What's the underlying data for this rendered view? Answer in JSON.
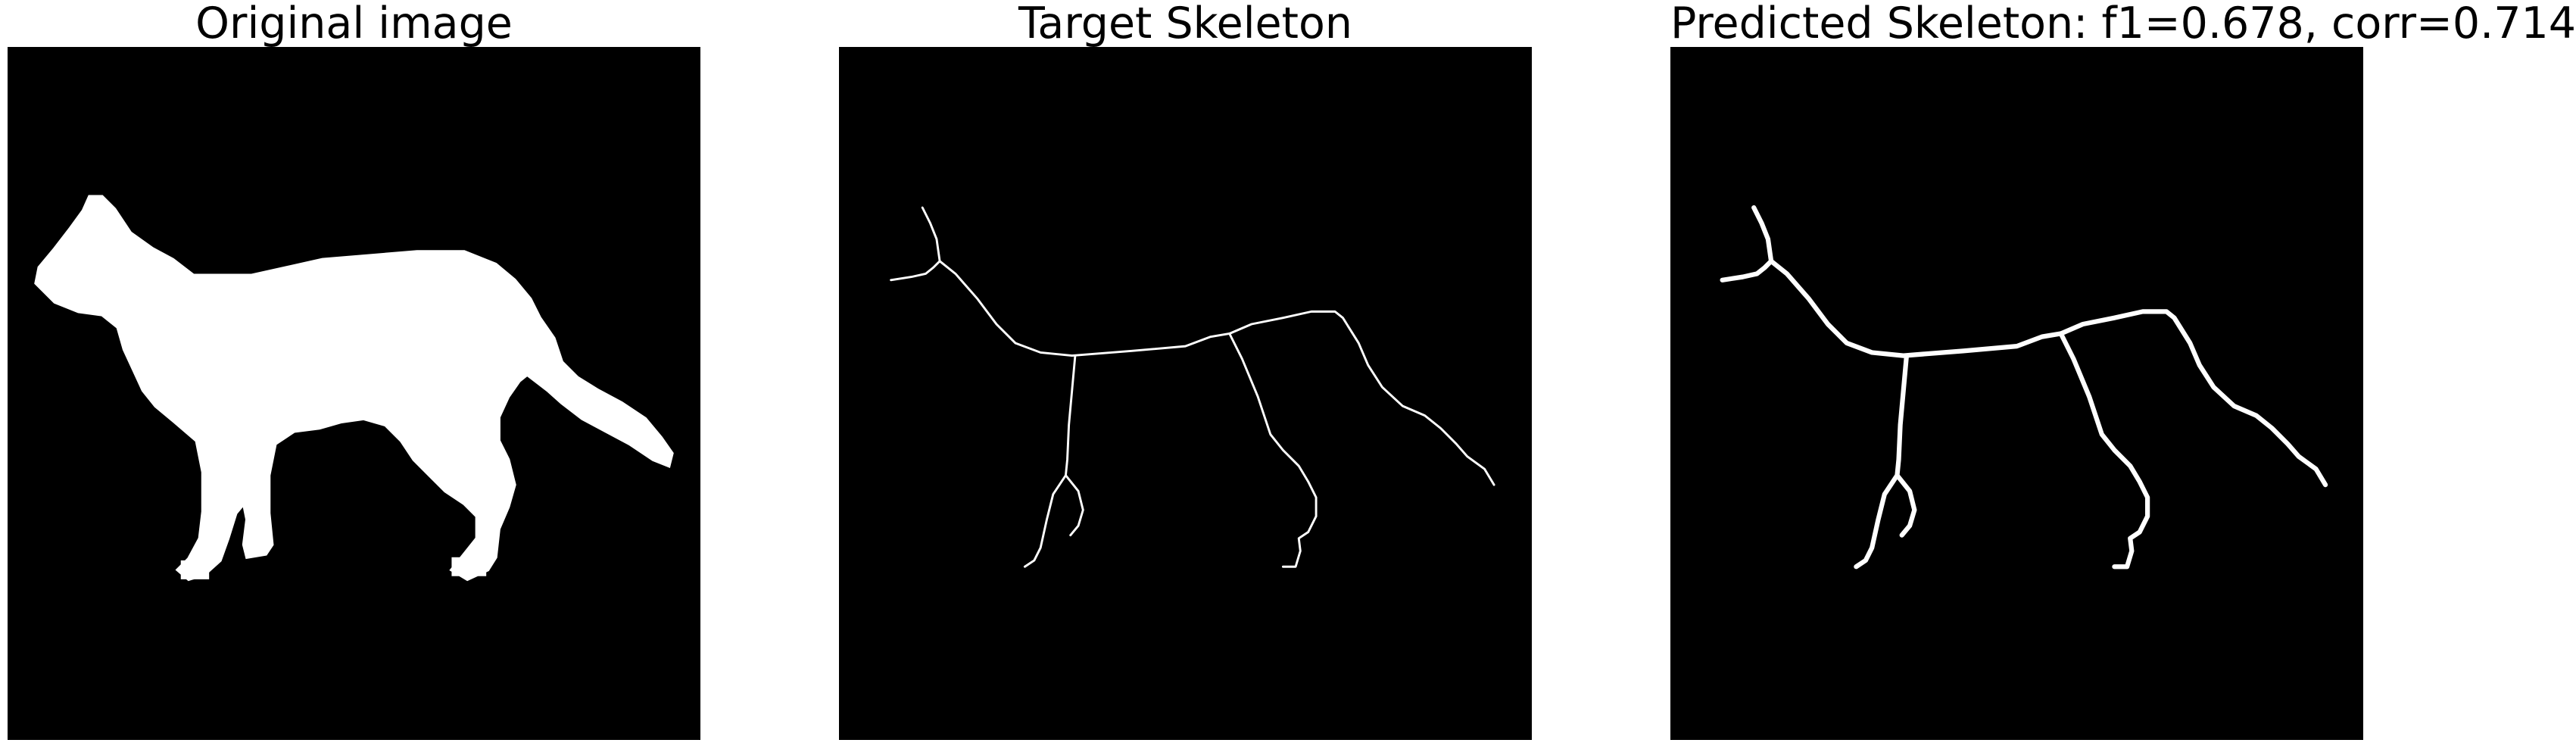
{
  "panels": [
    {
      "title": "Original image"
    },
    {
      "title": "Target Skeleton"
    },
    {
      "title": "Predicted Skeleton: f1=0.678, corr=0.714"
    }
  ],
  "colors": {
    "background": "#000000",
    "foreground": "#ffffff",
    "page": "#ffffff"
  }
}
